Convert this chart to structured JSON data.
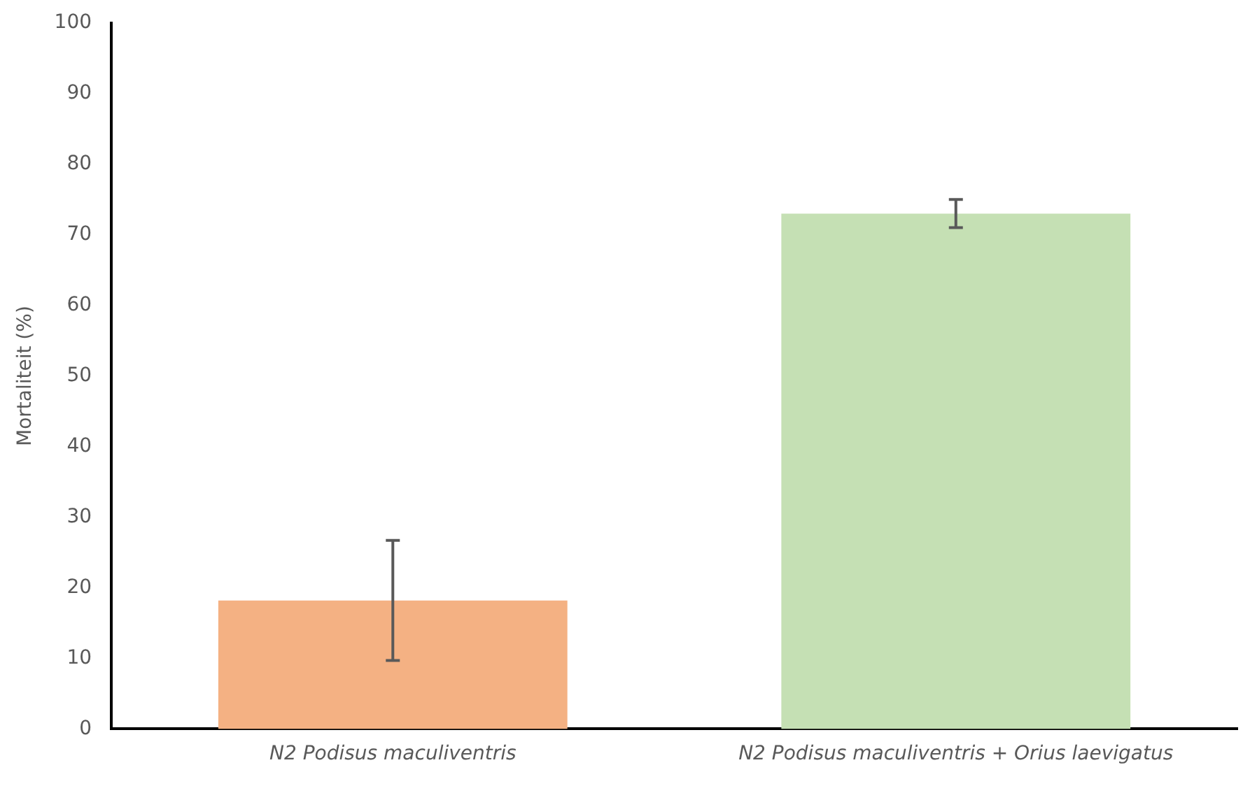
{
  "chart_data": {
    "type": "bar",
    "ylabel": "Mortaliteit (%)",
    "categories": [
      "N2 Podisus maculiventris",
      "N2 Podisus maculiventris + Orius laevigatus"
    ],
    "values": [
      18.2,
      73.0
    ],
    "colors": [
      "#f4b183",
      "#c5e0b4"
    ],
    "errors": [
      8.5,
      2.0
    ],
    "ylim": [
      0,
      100
    ],
    "yticks": [
      0,
      10,
      20,
      30,
      40,
      50,
      60,
      70,
      80,
      90,
      100
    ],
    "grid": false,
    "legend": false
  }
}
